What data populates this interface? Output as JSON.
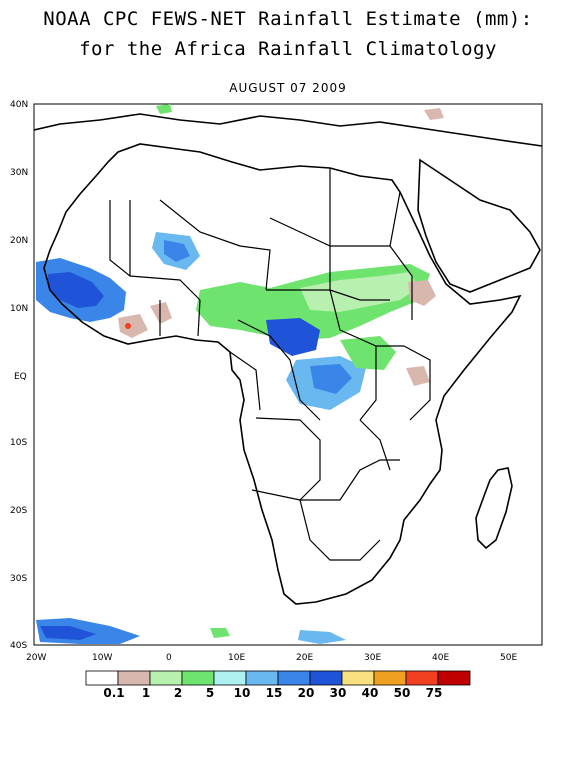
{
  "title_line1": "NOAA CPC FEWS-NET Rainfall Estimate (mm):",
  "title_line2": "for the Africa Rainfall Climatology",
  "date": "AUGUST 07 2009",
  "map": {
    "lat_labels": [
      "40N",
      "30N",
      "20N",
      "10N",
      "EQ",
      "10S",
      "20S",
      "30S",
      "40S"
    ],
    "lon_labels": [
      "20W",
      "10W",
      "0",
      "10E",
      "20E",
      "30E",
      "40E",
      "50E"
    ],
    "lat_range": [
      -40,
      40
    ],
    "lon_range": [
      -20,
      55
    ]
  },
  "legend": {
    "colors": [
      "#ffffff",
      "#d8b8ae",
      "#b8f0b0",
      "#6ee46e",
      "#aef0f0",
      "#6ab8f0",
      "#3a86e8",
      "#2054d8",
      "#f8e080",
      "#f0a020",
      "#f04020",
      "#c00000"
    ],
    "labels": [
      "0.1",
      "1",
      "2",
      "5",
      "10",
      "15",
      "20",
      "30",
      "40",
      "50",
      "75"
    ]
  }
}
